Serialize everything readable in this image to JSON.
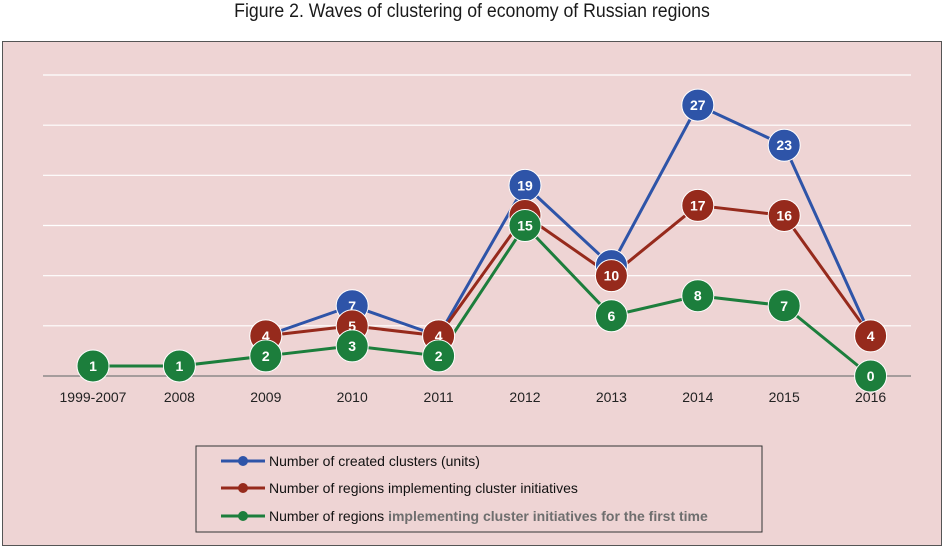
{
  "figure": {
    "caption": "Figure  2. Waves of clustering of economy of Russian regions"
  },
  "colors": {
    "background": "#eed4d4",
    "grid": "#ffffff",
    "axis": "#7a7a7a"
  },
  "chart_data": {
    "type": "line",
    "title": "",
    "xlabel": "",
    "ylabel": "",
    "ylim": [
      0,
      30
    ],
    "grid": true,
    "legend_position": "bottom",
    "categories": [
      "1999-2007",
      "2008",
      "2009",
      "2010",
      "2011",
      "2012",
      "2013",
      "2014",
      "2015",
      "2016"
    ],
    "series": [
      {
        "name": "Number of created clusters (units)",
        "color": "#2e54a8",
        "values": [
          null,
          null,
          4,
          7,
          4,
          19,
          11,
          27,
          23,
          4
        ]
      },
      {
        "name": "Number of regions implementing cluster initiatives",
        "color": "#962a1c",
        "values": [
          null,
          null,
          4,
          5,
          4,
          16,
          10,
          17,
          16,
          4
        ]
      },
      {
        "name": "Number of regions implementing cluster initiatives for the first time",
        "color": "#1c7e3c",
        "values": [
          1,
          1,
          2,
          3,
          2,
          15,
          6,
          8,
          7,
          0
        ]
      }
    ],
    "legend": {
      "entries": [
        {
          "prefix": "Number of created clusters (units)",
          "suffix": ""
        },
        {
          "prefix": "Number of regions implementing cluster initiatives",
          "suffix": ""
        },
        {
          "prefix": "Number of regions ",
          "suffix": "implementing cluster initiatives for the first time"
        }
      ]
    }
  }
}
